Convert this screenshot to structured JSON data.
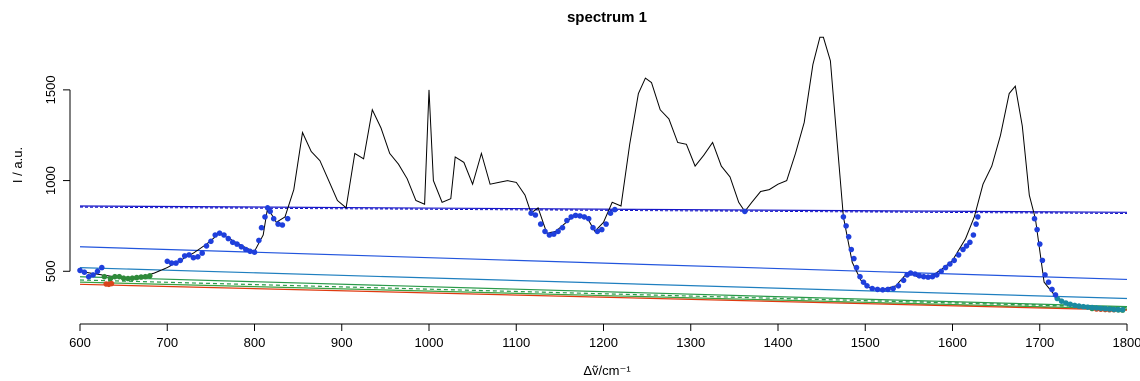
{
  "chart_data": {
    "type": "line",
    "title": "spectrum 1",
    "xlabel": "Δṽ/cm⁻¹",
    "ylabel": "I / a.u.",
    "xlim": [
      600,
      1800
    ],
    "ylim": [
      270,
      1830
    ],
    "x_ticks": [
      600,
      700,
      800,
      900,
      1000,
      1100,
      1200,
      1300,
      1400,
      1500,
      1600,
      1700,
      1800
    ],
    "y_ticks": [
      500,
      1000,
      1500
    ],
    "grid": false,
    "spectrum": {
      "color": "#000000",
      "points": [
        [
          600,
          500
        ],
        [
          612,
          490
        ],
        [
          625,
          480
        ],
        [
          640,
          470
        ],
        [
          655,
          460
        ],
        [
          670,
          470
        ],
        [
          685,
          490
        ],
        [
          700,
          520
        ],
        [
          715,
          560
        ],
        [
          730,
          600
        ],
        [
          745,
          650
        ],
        [
          760,
          710
        ],
        [
          775,
          670
        ],
        [
          790,
          630
        ],
        [
          800,
          610
        ],
        [
          810,
          700
        ],
        [
          815,
          850
        ],
        [
          825,
          770
        ],
        [
          835,
          800
        ],
        [
          845,
          950
        ],
        [
          855,
          1265
        ],
        [
          865,
          1160
        ],
        [
          875,
          1110
        ],
        [
          885,
          1000
        ],
        [
          895,
          890
        ],
        [
          905,
          850
        ],
        [
          915,
          1150
        ],
        [
          925,
          1120
        ],
        [
          935,
          1390
        ],
        [
          945,
          1290
        ],
        [
          955,
          1150
        ],
        [
          965,
          1090
        ],
        [
          975,
          1010
        ],
        [
          985,
          890
        ],
        [
          995,
          870
        ],
        [
          1000,
          1500
        ],
        [
          1005,
          1000
        ],
        [
          1015,
          880
        ],
        [
          1025,
          900
        ],
        [
          1030,
          1130
        ],
        [
          1040,
          1100
        ],
        [
          1050,
          980
        ],
        [
          1060,
          1150
        ],
        [
          1070,
          980
        ],
        [
          1080,
          990
        ],
        [
          1090,
          1000
        ],
        [
          1100,
          990
        ],
        [
          1110,
          920
        ],
        [
          1117,
          820
        ],
        [
          1125,
          850
        ],
        [
          1135,
          710
        ],
        [
          1145,
          720
        ],
        [
          1155,
          760
        ],
        [
          1165,
          800
        ],
        [
          1175,
          810
        ],
        [
          1182,
          790
        ],
        [
          1190,
          720
        ],
        [
          1200,
          770
        ],
        [
          1210,
          880
        ],
        [
          1220,
          860
        ],
        [
          1230,
          1200
        ],
        [
          1240,
          1480
        ],
        [
          1248,
          1565
        ],
        [
          1255,
          1540
        ],
        [
          1265,
          1390
        ],
        [
          1275,
          1340
        ],
        [
          1285,
          1210
        ],
        [
          1295,
          1200
        ],
        [
          1305,
          1080
        ],
        [
          1315,
          1140
        ],
        [
          1325,
          1210
        ],
        [
          1335,
          1080
        ],
        [
          1345,
          1020
        ],
        [
          1355,
          880
        ],
        [
          1362,
          830
        ],
        [
          1370,
          880
        ],
        [
          1380,
          940
        ],
        [
          1390,
          950
        ],
        [
          1400,
          980
        ],
        [
          1410,
          1000
        ],
        [
          1420,
          1150
        ],
        [
          1430,
          1320
        ],
        [
          1440,
          1640
        ],
        [
          1448,
          1790
        ],
        [
          1452,
          1790
        ],
        [
          1460,
          1660
        ],
        [
          1468,
          1200
        ],
        [
          1475,
          800
        ],
        [
          1485,
          550
        ],
        [
          1495,
          450
        ],
        [
          1505,
          410
        ],
        [
          1520,
          400
        ],
        [
          1535,
          420
        ],
        [
          1548,
          490
        ],
        [
          1560,
          470
        ],
        [
          1575,
          470
        ],
        [
          1590,
          520
        ],
        [
          1600,
          560
        ],
        [
          1615,
          680
        ],
        [
          1625,
          800
        ],
        [
          1635,
          980
        ],
        [
          1645,
          1080
        ],
        [
          1655,
          1250
        ],
        [
          1665,
          1480
        ],
        [
          1672,
          1520
        ],
        [
          1680,
          1300
        ],
        [
          1688,
          920
        ],
        [
          1695,
          790
        ],
        [
          1705,
          440
        ],
        [
          1715,
          380
        ],
        [
          1730,
          320
        ],
        [
          1750,
          300
        ],
        [
          1770,
          290
        ],
        [
          1798,
          285
        ]
      ]
    },
    "blue_points": {
      "color": "#1f3fdc",
      "points": [
        [
          600,
          505
        ],
        [
          605,
          495
        ],
        [
          610,
          470
        ],
        [
          615,
          480
        ],
        [
          620,
          500
        ],
        [
          625,
          520
        ],
        [
          700,
          555
        ],
        [
          705,
          545
        ],
        [
          710,
          545
        ],
        [
          715,
          560
        ],
        [
          720,
          585
        ],
        [
          725,
          590
        ],
        [
          730,
          575
        ],
        [
          735,
          580
        ],
        [
          740,
          600
        ],
        [
          745,
          640
        ],
        [
          750,
          665
        ],
        [
          755,
          700
        ],
        [
          760,
          710
        ],
        [
          765,
          700
        ],
        [
          770,
          680
        ],
        [
          775,
          660
        ],
        [
          780,
          650
        ],
        [
          785,
          635
        ],
        [
          790,
          620
        ],
        [
          795,
          610
        ],
        [
          800,
          605
        ],
        [
          805,
          670
        ],
        [
          808,
          740
        ],
        [
          812,
          800
        ],
        [
          815,
          850
        ],
        [
          818,
          830
        ],
        [
          822,
          790
        ],
        [
          827,
          760
        ],
        [
          832,
          755
        ],
        [
          838,
          790
        ],
        [
          1117,
          820
        ],
        [
          1122,
          810
        ],
        [
          1128,
          760
        ],
        [
          1133,
          720
        ],
        [
          1138,
          700
        ],
        [
          1143,
          705
        ],
        [
          1148,
          720
        ],
        [
          1153,
          740
        ],
        [
          1158,
          780
        ],
        [
          1163,
          800
        ],
        [
          1168,
          808
        ],
        [
          1173,
          805
        ],
        [
          1178,
          800
        ],
        [
          1183,
          790
        ],
        [
          1188,
          740
        ],
        [
          1193,
          720
        ],
        [
          1198,
          730
        ],
        [
          1203,
          760
        ],
        [
          1208,
          820
        ],
        [
          1213,
          840
        ],
        [
          1362,
          830
        ],
        [
          1475,
          800
        ],
        [
          1478,
          750
        ],
        [
          1481,
          690
        ],
        [
          1484,
          620
        ],
        [
          1487,
          570
        ],
        [
          1490,
          520
        ],
        [
          1494,
          470
        ],
        [
          1498,
          440
        ],
        [
          1502,
          420
        ],
        [
          1508,
          405
        ],
        [
          1514,
          400
        ],
        [
          1520,
          398
        ],
        [
          1526,
          400
        ],
        [
          1532,
          405
        ],
        [
          1538,
          420
        ],
        [
          1544,
          450
        ],
        [
          1548,
          480
        ],
        [
          1552,
          490
        ],
        [
          1557,
          485
        ],
        [
          1562,
          475
        ],
        [
          1567,
          470
        ],
        [
          1572,
          468
        ],
        [
          1577,
          470
        ],
        [
          1582,
          480
        ],
        [
          1587,
          500
        ],
        [
          1592,
          520
        ],
        [
          1597,
          540
        ],
        [
          1602,
          560
        ],
        [
          1607,
          590
        ],
        [
          1612,
          620
        ],
        [
          1616,
          640
        ],
        [
          1620,
          660
        ],
        [
          1624,
          700
        ],
        [
          1627,
          760
        ],
        [
          1629,
          800
        ],
        [
          1694,
          790
        ],
        [
          1697,
          730
        ],
        [
          1700,
          650
        ],
        [
          1703,
          560
        ],
        [
          1706,
          480
        ],
        [
          1710,
          440
        ],
        [
          1714,
          400
        ],
        [
          1718,
          370
        ]
      ]
    },
    "teal_points": {
      "color": "#1a8aa0",
      "points": [
        [
          1720,
          350
        ],
        [
          1725,
          335
        ],
        [
          1730,
          325
        ],
        [
          1735,
          318
        ],
        [
          1740,
          312
        ],
        [
          1745,
          308
        ],
        [
          1750,
          305
        ],
        [
          1755,
          302
        ],
        [
          1760,
          300
        ],
        [
          1765,
          298
        ],
        [
          1770,
          296
        ],
        [
          1775,
          294
        ],
        [
          1780,
          292
        ],
        [
          1785,
          290
        ],
        [
          1790,
          289
        ],
        [
          1795,
          288
        ]
      ]
    },
    "green_points": {
      "color": "#2f8a3a",
      "points": [
        [
          628,
          470
        ],
        [
          635,
          460
        ],
        [
          640,
          470
        ],
        [
          645,
          470
        ],
        [
          650,
          462
        ],
        [
          655,
          460
        ],
        [
          660,
          462
        ],
        [
          665,
          465
        ],
        [
          670,
          468
        ],
        [
          675,
          470
        ],
        [
          680,
          475
        ],
        [
          1760,
          295
        ],
        [
          1765,
          294
        ],
        [
          1770,
          292
        ],
        [
          1775,
          290
        ],
        [
          1780,
          289
        ],
        [
          1785,
          288
        ],
        [
          1790,
          287
        ],
        [
          1795,
          286
        ]
      ]
    },
    "red_points": {
      "color": "#d8451c",
      "points": [
        [
          630,
          430
        ],
        [
          633,
          428
        ],
        [
          636,
          432
        ],
        [
          1765,
          292
        ],
        [
          1770,
          291
        ],
        [
          1775,
          290
        ],
        [
          1780,
          289
        ],
        [
          1785,
          288
        ]
      ]
    },
    "baselines": [
      {
        "color": "#1616c8",
        "x": [
          600,
          1800
        ],
        "y": [
          860,
          825
        ],
        "style": "dashed-double"
      },
      {
        "color": "#2255dd",
        "x": [
          600,
          1800
        ],
        "y": [
          635,
          455
        ],
        "style": "solid"
      },
      {
        "color": "#1f7fbf",
        "x": [
          600,
          1800
        ],
        "y": [
          520,
          350
        ],
        "style": "solid"
      },
      {
        "color": "#2a9a4a",
        "x": [
          600,
          1800
        ],
        "y": [
          470,
          305
        ],
        "style": "solid"
      },
      {
        "color": "#2a9a4a",
        "x": [
          600,
          1800
        ],
        "y": [
          452,
          300
        ],
        "style": "dashed"
      },
      {
        "color": "#3aa040",
        "x": [
          600,
          1800
        ],
        "y": [
          440,
          292
        ],
        "style": "solid"
      },
      {
        "color": "#e03a10",
        "x": [
          600,
          1800
        ],
        "y": [
          428,
          286
        ],
        "style": "solid"
      }
    ]
  }
}
